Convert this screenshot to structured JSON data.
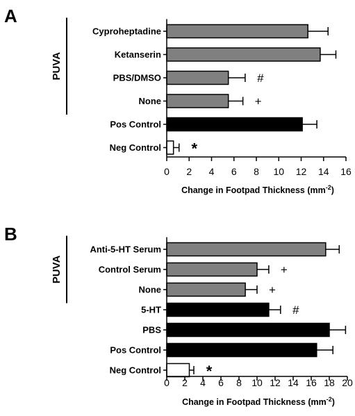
{
  "chart_data": [
    {
      "type": "bar",
      "orientation": "horizontal",
      "panel_label": "A",
      "group_label": "PUVA",
      "group_categories": [
        "Cyproheptadine",
        "Ketanserin",
        "PBS/DMSO",
        "None"
      ],
      "categories": [
        "Cyproheptadine",
        "Ketanserin",
        "PBS/DMSO",
        "None",
        "Pos Control",
        "Neg Control"
      ],
      "values": [
        12.6,
        13.7,
        5.5,
        5.5,
        12.1,
        0.6
      ],
      "errors": [
        1.8,
        1.4,
        1.5,
        1.3,
        1.3,
        0.5
      ],
      "fill_colors": [
        "#808080",
        "#808080",
        "#808080",
        "#808080",
        "#000000",
        "#ffffff"
      ],
      "annotations": [
        "",
        "",
        "#",
        "+",
        "",
        "*"
      ],
      "xlabel": "Change in Footpad Thickness (mm",
      "xlabel_superscript": "-2",
      "xlabel_suffix": ")",
      "xlim": [
        0,
        16
      ],
      "xticks": [
        "0",
        "2",
        "4",
        "6",
        "8",
        "10",
        "12",
        "14",
        "16"
      ],
      "grid": false
    },
    {
      "type": "bar",
      "orientation": "horizontal",
      "panel_label": "B",
      "group_label": "PUVA",
      "group_categories": [
        "Anti-5-HT Serum",
        "Control Serum",
        "None"
      ],
      "categories": [
        "Anti-5-HT Serum",
        "Control Serum",
        "None",
        "5-HT",
        "PBS",
        "Pos Control",
        "Neg Control"
      ],
      "values": [
        17.6,
        10.0,
        8.7,
        11.3,
        18.0,
        16.6,
        2.5
      ],
      "errors": [
        1.5,
        1.3,
        1.3,
        1.3,
        1.8,
        1.8,
        0.5
      ],
      "fill_colors": [
        "#808080",
        "#808080",
        "#808080",
        "#000000",
        "#000000",
        "#000000",
        "#ffffff"
      ],
      "annotations": [
        "",
        "+",
        "+",
        "#",
        "",
        "",
        "*"
      ],
      "xlabel": "Change in Footpad Thickness (mm",
      "xlabel_superscript": "-2",
      "xlabel_suffix": ")",
      "xlim": [
        0,
        20
      ],
      "xticks": [
        "0",
        "2",
        "4",
        "6",
        "8",
        "10",
        "12",
        "14",
        "16",
        "18",
        "20"
      ],
      "grid": false
    }
  ]
}
